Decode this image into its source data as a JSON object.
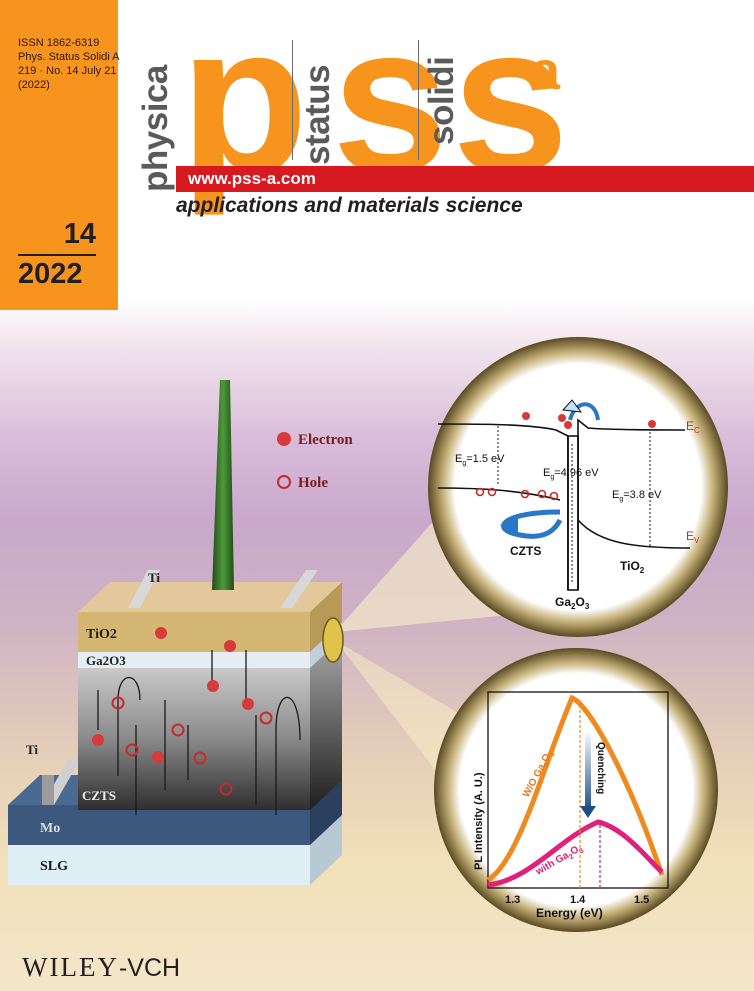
{
  "journal": {
    "issn": "ISSN 1862-6319",
    "abbrev": "Phys. Status Solidi A",
    "volume_line": "219 · No. 14 July 21",
    "year_paren": "(2022)",
    "issue_number": "14",
    "issue_year": "2022",
    "vertical_words": [
      "physica",
      "status",
      "solidi"
    ],
    "logo_letters": [
      "p",
      "s",
      "s"
    ],
    "logo_superscript": "a",
    "url": "www.pss-a.com",
    "subtitle": "applications and materials science",
    "publisher": "Wiley",
    "publisher_suffix": "-VCH"
  },
  "device": {
    "legend_electron": "Electron",
    "legend_hole": "Hole",
    "layer_ti_top": "Ti",
    "layer_tio2": "TiO2",
    "layer_ga2o3": "Ga2O3",
    "layer_ti_side": "Ti",
    "layer_czts": "CZTS",
    "layer_mo": "Mo",
    "layer_slg": "SLG"
  },
  "band_diagram": {
    "ec_label": "E",
    "ec_sub": "C",
    "ev_label": "E",
    "ev_sub": "V",
    "eg_czts": "=1.5 eV",
    "eg_ga2o3": "=4.96 eV",
    "eg_tio2": "=3.8 eV",
    "eg_prefix": "E",
    "eg_sub": "g",
    "czts": "CZTS",
    "tio2": "TiO",
    "tio2_sub": "2",
    "ga2o3": "Ga",
    "ga2o3_sub1": "2",
    "ga2o3_mid": "O",
    "ga2o3_sub2": "3"
  },
  "pl_plot": {
    "ylabel": "PL Intensity (A. U.)",
    "xlabel": "Energy (eV)",
    "xticks": [
      "1.3",
      "1.4",
      "1.5"
    ],
    "series_wo": "W/O Ga",
    "series_with": "with Ga",
    "sub2": "2",
    "o": "O",
    "sub3": "3",
    "quenching": "Quenching"
  },
  "colors": {
    "orange": "#f7941d",
    "red": "#d71920",
    "magenta": "#e0207a"
  }
}
